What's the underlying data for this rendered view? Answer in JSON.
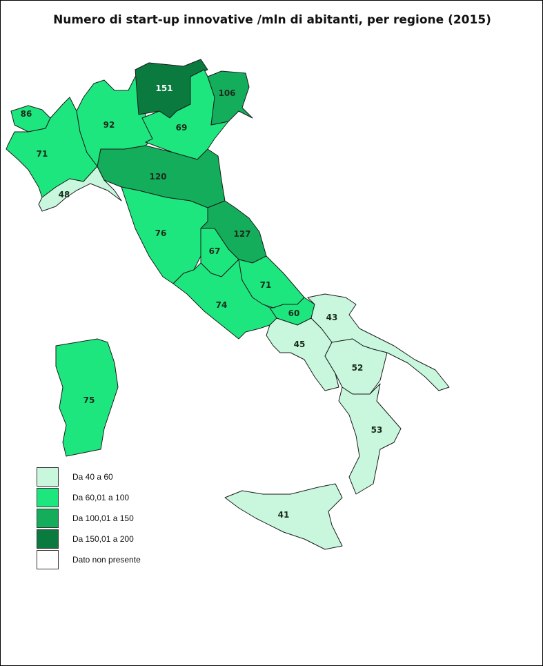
{
  "title": "Numero di start-up innovative /mln di abitanti, per regione (2015)",
  "legend": [
    {
      "label": "Da 40 a 60",
      "color": "#c8f7de"
    },
    {
      "label": "Da 60,01 a 100",
      "color": "#1ee67e"
    },
    {
      "label": "Da 100,01 a 150",
      "color": "#14ad5c"
    },
    {
      "label": "Da 150,01 a 200",
      "color": "#0b7a3e"
    },
    {
      "label": "Dato non presente",
      "color": "#ffffff"
    }
  ],
  "regions": [
    {
      "value": "86",
      "class": 1
    },
    {
      "value": "71",
      "class": 1
    },
    {
      "value": "92",
      "class": 1
    },
    {
      "value": "151",
      "class": 3
    },
    {
      "value": "69",
      "class": 1
    },
    {
      "value": "106",
      "class": 2
    },
    {
      "value": "48",
      "class": 0
    },
    {
      "value": "120",
      "class": 2
    },
    {
      "value": "76",
      "class": 1
    },
    {
      "value": "127",
      "class": 2
    },
    {
      "value": "67",
      "class": 1
    },
    {
      "value": "74",
      "class": 1
    },
    {
      "value": "71",
      "class": 1
    },
    {
      "value": "60",
      "class": 1
    },
    {
      "value": "45",
      "class": 0
    },
    {
      "value": "43",
      "class": 0
    },
    {
      "value": "52",
      "class": 0
    },
    {
      "value": "53",
      "class": 0
    },
    {
      "value": "41",
      "class": 0
    },
    {
      "value": "75",
      "class": 1
    }
  ]
}
